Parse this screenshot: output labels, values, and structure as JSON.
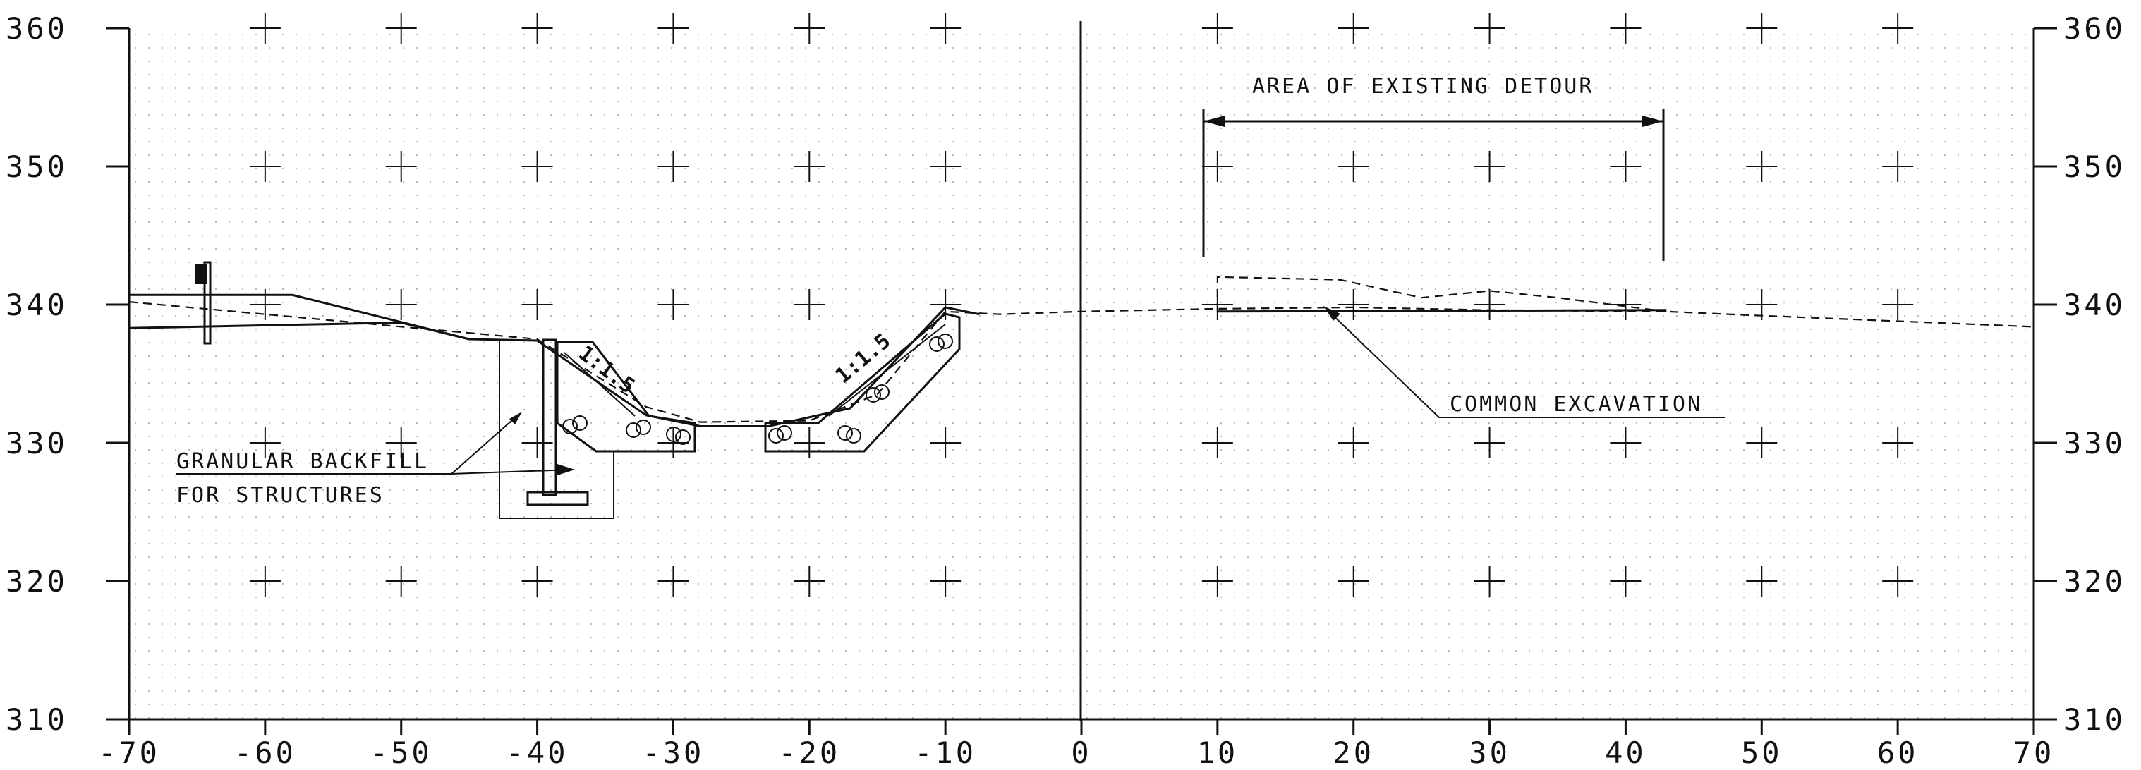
{
  "x_axis": {
    "min": -70,
    "max": 70,
    "step": 10,
    "tick_labels": [
      "-70",
      "-60",
      "-50",
      "-40",
      "-30",
      "-20",
      "-10",
      "0",
      "10",
      "20",
      "30",
      "40",
      "50",
      "60",
      "70"
    ]
  },
  "y_axis": {
    "min": 310,
    "max": 360,
    "step": 10,
    "tick_labels": [
      "310",
      "320",
      "330",
      "340",
      "350",
      "360"
    ]
  },
  "annotations": {
    "detour": "AREA OF EXISTING DETOUR",
    "excavation": "COMMON EXCAVATION",
    "backfill_line1": "GRANULAR BACKFILL",
    "backfill_line2": "FOR STRUCTURES",
    "slope_left": "1:1.5",
    "slope_right": "1:1.5"
  },
  "chart_data": {
    "type": "line",
    "series": [
      {
        "style": "solid",
        "points": [
          [
            -70,
            340.7
          ],
          [
            -58,
            340.7
          ],
          [
            -45,
            337.5
          ],
          [
            -40,
            337.4
          ],
          [
            -32,
            332
          ],
          [
            -28,
            331.2
          ],
          [
            -23,
            331.2
          ],
          [
            -17,
            332.5
          ],
          [
            -10,
            339.8
          ],
          [
            -7.5,
            339.3
          ]
        ]
      },
      {
        "style": "solid",
        "points": [
          [
            -70,
            338.3
          ],
          [
            -50,
            338.7
          ],
          [
            -45,
            337.5
          ]
        ]
      },
      {
        "style": "dashed",
        "points": [
          [
            -70,
            340.2
          ],
          [
            -40,
            337.5
          ],
          [
            -32,
            332.6
          ],
          [
            -28,
            331.5
          ],
          [
            -20,
            331.6
          ],
          [
            -15,
            333.5
          ],
          [
            -10,
            339.5
          ],
          [
            -6,
            339.3
          ],
          [
            0,
            339.5
          ],
          [
            10,
            339.7
          ],
          [
            20,
            339.8
          ],
          [
            30,
            339.6
          ],
          [
            43,
            339.5
          ],
          [
            50,
            339.2
          ],
          [
            60,
            338.8
          ],
          [
            70,
            338.4
          ]
        ]
      },
      {
        "style": "dashed",
        "points": [
          [
            10,
            339.5
          ],
          [
            10,
            342
          ],
          [
            19,
            341.8
          ],
          [
            25,
            340.5
          ],
          [
            30,
            341
          ],
          [
            35,
            340.5
          ],
          [
            43,
            339.5
          ]
        ]
      },
      {
        "style": "solid",
        "points": [
          [
            10,
            339.5
          ],
          [
            43,
            339.6
          ]
        ]
      }
    ]
  }
}
